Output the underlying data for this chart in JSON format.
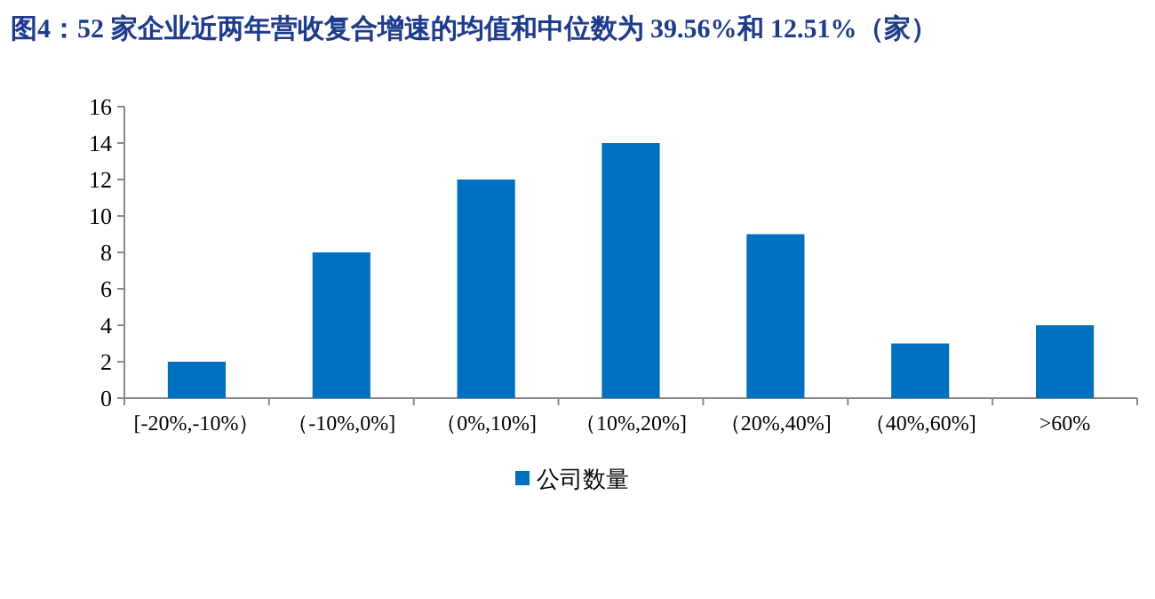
{
  "chart_data": {
    "type": "bar",
    "title": "图4：52 家企业近两年营收复合增速的均值和中位数为 39.56%和 12.51%（家）",
    "categories": [
      "[-20%,-10%）",
      "（-10%,0%]",
      "（0%,10%]",
      "（10%,20%]",
      "（20%,40%]",
      "（40%,60%]",
      ">60%"
    ],
    "series": [
      {
        "name": "公司数量",
        "color": "#0070c0",
        "values": [
          2,
          8,
          12,
          14,
          9,
          3,
          4
        ]
      }
    ],
    "ylim": [
      0,
      16
    ],
    "yticks": [
      0,
      2,
      4,
      6,
      8,
      10,
      12,
      14,
      16
    ],
    "grid": false,
    "legend": "bottom"
  }
}
